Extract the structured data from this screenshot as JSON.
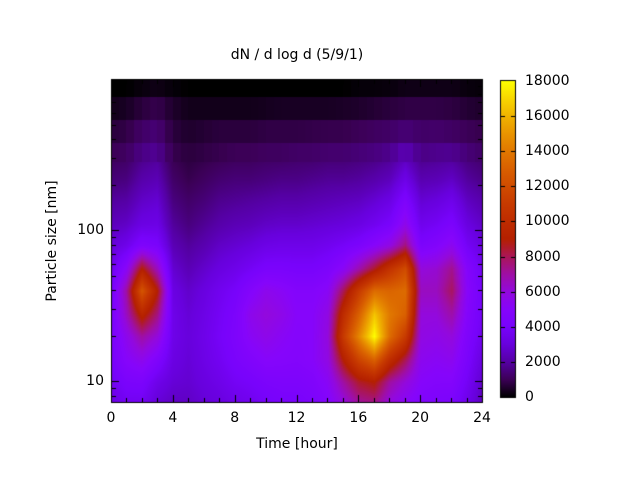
{
  "title": "dN / d log d (5/9/1)",
  "axes": {
    "x": {
      "label": "Time [hour]",
      "range": [
        0,
        24
      ],
      "major_ticks": [
        0,
        4,
        8,
        12,
        16,
        20,
        24
      ],
      "minor_step_hours": 1
    },
    "y": {
      "label": "Particle size [nm]",
      "scale": "log",
      "range_nm": [
        7.3,
        1000
      ],
      "major_ticks": [
        10,
        100,
        1000
      ],
      "labeled_ticks": [
        10,
        100
      ]
    }
  },
  "colorbar": {
    "range": [
      0,
      18000
    ],
    "tick_step": 2000,
    "ticks": [
      0,
      2000,
      4000,
      6000,
      8000,
      10000,
      12000,
      14000,
      16000,
      18000
    ],
    "values_per_stop": 1000,
    "palette_stops": [
      "#000000",
      "#3C0057",
      "#5500A4",
      "#6801DD",
      "#7803FB",
      "#8605FB",
      "#9309DD",
      "#9F0FA4",
      "#AA1657",
      "#B42000",
      "#BE2C00",
      "#C73A00",
      "#D04C00",
      "#D96000",
      "#E17800",
      "#E99400",
      "#F0B300",
      "#F8D700",
      "#FFFF00"
    ]
  },
  "chart_data": {
    "type": "heatmap",
    "title": "dN / d log d (5/9/1)",
    "xlabel": "Time [hour]",
    "ylabel": "Particle size [nm]",
    "value_label": "dN / d log d",
    "value_range": [
      0,
      18000
    ],
    "x_hours": [
      0,
      1,
      2,
      3,
      4,
      5,
      6,
      7,
      8,
      9,
      10,
      11,
      12,
      13,
      14,
      15,
      16,
      17,
      18,
      19,
      20,
      21,
      22,
      23,
      24
    ],
    "sizes_nm": [
      900,
      640,
      450,
      320,
      220,
      160,
      110,
      80,
      56,
      40,
      28,
      20,
      14,
      10,
      7.5
    ],
    "values": [
      [
        0,
        0,
        150,
        250,
        100,
        0,
        0,
        0,
        0,
        0,
        0,
        0,
        0,
        0,
        0,
        0,
        100,
        100,
        150,
        250,
        250,
        250,
        250,
        150,
        100
      ],
      [
        300,
        400,
        700,
        900,
        500,
        300,
        300,
        300,
        300,
        300,
        350,
        400,
        400,
        400,
        400,
        450,
        500,
        600,
        700,
        800,
        800,
        800,
        750,
        600,
        500
      ],
      [
        700,
        800,
        1200,
        1400,
        700,
        500,
        600,
        700,
        700,
        700,
        800,
        800,
        800,
        850,
        900,
        900,
        1000,
        1100,
        1200,
        1400,
        1200,
        1250,
        1150,
        1000,
        900
      ],
      [
        1000,
        1100,
        1600,
        1800,
        900,
        700,
        800,
        900,
        1000,
        1000,
        1100,
        1100,
        1200,
        1200,
        1300,
        1300,
        1400,
        1500,
        1700,
        2300,
        1600,
        1700,
        1750,
        1400,
        1200
      ],
      [
        1400,
        1500,
        2100,
        2300,
        1200,
        900,
        1100,
        1300,
        1400,
        1400,
        1500,
        1600,
        1600,
        1700,
        1800,
        1800,
        1900,
        2100,
        2400,
        3300,
        2200,
        2300,
        2550,
        1900,
        1600
      ],
      [
        1900,
        2000,
        2600,
        2800,
        1500,
        1200,
        1400,
        1700,
        1800,
        1900,
        2000,
        2100,
        2100,
        2200,
        2300,
        2400,
        2500,
        2800,
        3200,
        4400,
        2800,
        3000,
        3400,
        2500,
        2100
      ],
      [
        2400,
        2600,
        3200,
        3300,
        1900,
        1500,
        1800,
        2100,
        2300,
        2400,
        2600,
        2700,
        2700,
        2800,
        2900,
        3000,
        3200,
        3600,
        4100,
        5600,
        3500,
        3800,
        4300,
        3100,
        2600
      ],
      [
        2900,
        3400,
        4500,
        4200,
        2300,
        1900,
        2200,
        2600,
        2800,
        3000,
        3300,
        3400,
        3400,
        3400,
        3600,
        3900,
        4300,
        5000,
        5800,
        7500,
        4300,
        4700,
        5400,
        3800,
        3100
      ],
      [
        3400,
        5200,
        9000,
        6500,
        2800,
        2300,
        2700,
        3100,
        3400,
        3800,
        4200,
        4200,
        4100,
        4100,
        4400,
        5200,
        6800,
        8500,
        10500,
        12000,
        6000,
        6200,
        7300,
        4800,
        3600
      ],
      [
        3800,
        7000,
        12500,
        9000,
        3200,
        2700,
        3100,
        3600,
        4000,
        4800,
        5500,
        5200,
        4800,
        4800,
        5200,
        8000,
        11000,
        13500,
        13200,
        13500,
        6500,
        6500,
        7900,
        5000,
        3800
      ],
      [
        4000,
        6500,
        9500,
        7500,
        3400,
        2900,
        3300,
        3800,
        4300,
        5500,
        6000,
        5600,
        5000,
        5000,
        5800,
        10000,
        13000,
        16500,
        14000,
        13000,
        6000,
        6000,
        6900,
        4800,
        3700
      ],
      [
        4100,
        5500,
        7000,
        6000,
        3400,
        3000,
        3400,
        3900,
        4400,
        5200,
        5600,
        5200,
        4900,
        5000,
        6000,
        11000,
        14500,
        18000,
        13500,
        11000,
        5800,
        5600,
        6000,
        4500,
        3500
      ],
      [
        4000,
        5000,
        5500,
        4500,
        3200,
        2900,
        3300,
        3700,
        4200,
        4600,
        5000,
        4900,
        4800,
        5000,
        5800,
        9000,
        11500,
        13000,
        10000,
        8000,
        5400,
        5200,
        5400,
        4200,
        3000
      ],
      [
        3600,
        4200,
        4300,
        3400,
        2900,
        2800,
        3100,
        3400,
        3800,
        4000,
        4300,
        4400,
        4400,
        4600,
        5200,
        7000,
        8500,
        9000,
        7000,
        6000,
        5000,
        4800,
        4800,
        3800,
        2600
      ],
      [
        3200,
        3700,
        3700,
        2900,
        2600,
        2600,
        2900,
        3100,
        3400,
        3600,
        3900,
        4100,
        4100,
        4300,
        4800,
        6000,
        7200,
        7500,
        6000,
        5200,
        4600,
        4400,
        4300,
        3400,
        2400
      ]
    ]
  }
}
